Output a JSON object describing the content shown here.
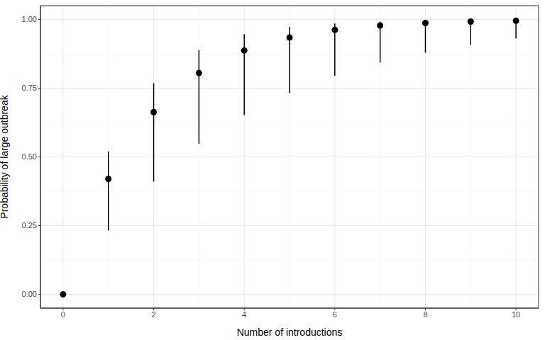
{
  "chart_data": {
    "type": "scatter",
    "x_label": "Number of introductions",
    "y_label": "Probability of large outbreak",
    "x": [
      0,
      1,
      2,
      3,
      4,
      5,
      6,
      7,
      8,
      9,
      10
    ],
    "values": [
      0,
      0.42,
      0.663,
      0.805,
      0.887,
      0.934,
      0.962,
      0.978,
      0.987,
      0.992,
      0.995
    ],
    "lower": [
      0,
      0.232,
      0.41,
      0.548,
      0.652,
      0.733,
      0.795,
      0.843,
      0.879,
      0.907,
      0.93
    ],
    "upper": [
      0,
      0.52,
      0.768,
      0.888,
      0.946,
      0.973,
      0.985,
      0.992,
      0.996,
      0.998,
      0.999
    ],
    "xlim": [
      -0.5,
      10.5
    ],
    "ylim": [
      -0.05,
      1.05
    ],
    "xticks": [
      0,
      2,
      4,
      6,
      8,
      10
    ],
    "yticks": [
      {
        "value": 0,
        "label": "0.00"
      },
      {
        "value": 0.25,
        "label": "0.25"
      },
      {
        "value": 0.5,
        "label": "0.50"
      },
      {
        "value": 0.75,
        "label": "0.75"
      },
      {
        "value": 1,
        "label": "1.00"
      }
    ],
    "grid": true,
    "color": "#000000",
    "marker": "circle"
  }
}
